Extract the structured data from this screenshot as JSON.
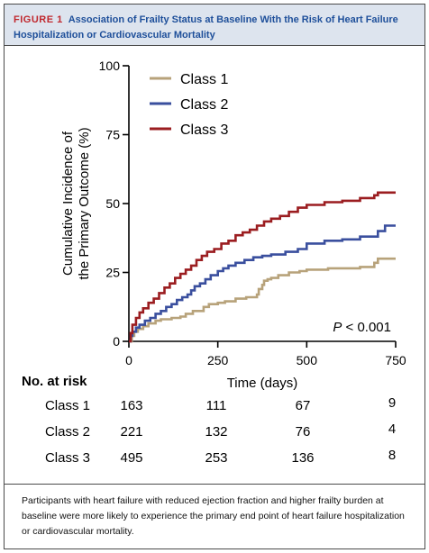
{
  "figure": {
    "label": "FIGURE 1",
    "title": "Association of Frailty Status at Baseline With the Risk of Heart Failure Hospitalization or Cardiovascular Mortality",
    "caption": "Participants with heart failure with reduced ejection fraction and higher frailty burden at baseline were more likely to experience the primary end point of heart failure hospitalization or cardiovascular mortality."
  },
  "colors": {
    "class1": "#b7a27a",
    "class2": "#3a4f9e",
    "class3": "#9b1d20",
    "header_bg": "#dde4ee",
    "title": "#1e4f9a",
    "label": "#c0282e"
  },
  "chart_data": {
    "type": "line",
    "step": true,
    "xlabel": "Time (days)",
    "ylabel": "Cumulative Incidence of the Primary Outcome (%)",
    "ylabel_lines": [
      "Cumulative Incidence of",
      "the Primary Outcome (%)"
    ],
    "xlim": [
      0,
      750
    ],
    "ylim": [
      0,
      100
    ],
    "xticks": [
      0,
      250,
      500,
      750
    ],
    "yticks": [
      0,
      25,
      50,
      75,
      100
    ],
    "legend_position": "top-center",
    "annotation": {
      "italic": "P",
      "rest": " < 0.001"
    },
    "series": [
      {
        "name": "Class 1",
        "color": "#b7a27a",
        "x": [
          0,
          8,
          15,
          25,
          40,
          55,
          75,
          90,
          120,
          145,
          160,
          180,
          210,
          225,
          250,
          270,
          300,
          330,
          360,
          365,
          375,
          380,
          390,
          400,
          420,
          450,
          480,
          500,
          560,
          650,
          690,
          700,
          750
        ],
        "y": [
          0,
          2,
          3.5,
          4.5,
          5.5,
          6.5,
          7.5,
          8,
          8.5,
          9,
          10,
          11,
          12.5,
          13.5,
          14,
          14.5,
          15.5,
          16,
          17,
          19,
          20.5,
          22,
          22.5,
          23,
          24,
          25,
          25.5,
          26,
          26.5,
          27,
          28.5,
          30,
          30
        ]
      },
      {
        "name": "Class 2",
        "color": "#3a4f9e",
        "x": [
          0,
          5,
          10,
          20,
          30,
          45,
          60,
          75,
          90,
          105,
          120,
          135,
          150,
          165,
          175,
          185,
          200,
          215,
          230,
          250,
          265,
          280,
          300,
          325,
          350,
          375,
          400,
          440,
          475,
          500,
          550,
          600,
          650,
          700,
          720,
          750
        ],
        "y": [
          0,
          2,
          3.5,
          5,
          6,
          7.5,
          8.5,
          10,
          11,
          12.5,
          13.5,
          15,
          16,
          17,
          18.5,
          20,
          21,
          22.5,
          24,
          25.5,
          26.5,
          27.5,
          28.5,
          29.5,
          30.5,
          31,
          31.5,
          32.5,
          33.5,
          35.5,
          36.5,
          37,
          38,
          40,
          42,
          42
        ]
      },
      {
        "name": "Class 3",
        "color": "#9b1d20",
        "x": [
          0,
          5,
          10,
          20,
          30,
          40,
          55,
          70,
          85,
          100,
          115,
          130,
          145,
          160,
          175,
          190,
          205,
          220,
          240,
          260,
          280,
          300,
          320,
          340,
          360,
          380,
          400,
          425,
          450,
          475,
          500,
          550,
          600,
          650,
          690,
          700,
          750
        ],
        "y": [
          0,
          3,
          6,
          8.5,
          10.5,
          12,
          14,
          15.5,
          17.5,
          19.5,
          21,
          23,
          24.5,
          26,
          27.5,
          29.5,
          31,
          32.5,
          33.5,
          35.5,
          36.5,
          38.5,
          39.5,
          40.5,
          42,
          43.5,
          44.5,
          45.5,
          47,
          48.5,
          49.5,
          50.5,
          51,
          52,
          53,
          54,
          54
        ]
      }
    ]
  },
  "risk_table": {
    "title": "No. at risk",
    "timepoints": [
      0,
      250,
      500,
      750
    ],
    "rows": [
      {
        "label": "Class 1",
        "values": [
          "163",
          "111",
          "67",
          "9"
        ]
      },
      {
        "label": "Class 2",
        "values": [
          "221",
          "132",
          "76",
          "4"
        ]
      },
      {
        "label": "Class 3",
        "values": [
          "495",
          "253",
          "136",
          "8"
        ]
      }
    ]
  }
}
